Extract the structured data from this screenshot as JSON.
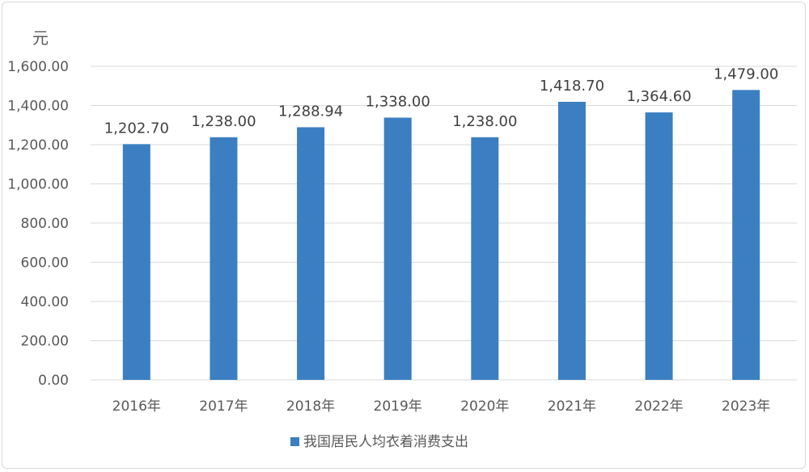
{
  "chart_data": {
    "type": "bar",
    "title": "",
    "ylabel": "元",
    "xlabel": "",
    "categories": [
      "2016年",
      "2017年",
      "2018年",
      "2019年",
      "2020年",
      "2021年",
      "2022年",
      "2023年"
    ],
    "series": [
      {
        "name": "我国居民人均衣着消费支出",
        "values": [
          1202.7,
          1238.0,
          1288.94,
          1338.0,
          1238.0,
          1418.7,
          1364.6,
          1479.0
        ],
        "color": "#3b7fc2"
      }
    ],
    "data_labels": [
      "1,202.70",
      "1,238.00",
      "1,288.94",
      "1,338.00",
      "1,238.00",
      "1,418.70",
      "1,364.60",
      "1,479.00"
    ],
    "ylim": [
      0,
      1600
    ],
    "yticks": [
      "0.00",
      "200.00",
      "400.00",
      "600.00",
      "800.00",
      "1,000.00",
      "1,200.00",
      "1,400.00",
      "1,600.00"
    ],
    "grid": true,
    "legend": "bottom"
  }
}
